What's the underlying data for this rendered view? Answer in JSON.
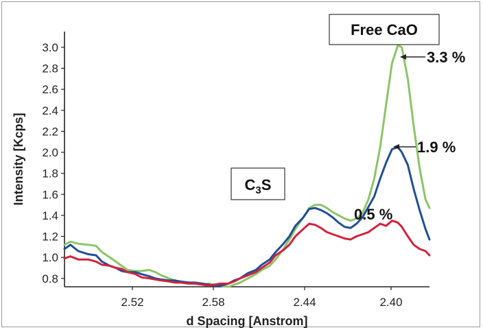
{
  "chart_data": {
    "type": "line",
    "xlabel": "d Spacing [Anstrom]",
    "ylabel": "Intensity [Kcps]",
    "x_tick_labels": [
      "2.52",
      "2.58",
      "2.44",
      "2.40"
    ],
    "y_ticks": [
      0.8,
      1.0,
      1.2,
      1.4,
      1.6,
      1.8,
      2.0,
      2.2,
      2.4,
      2.6,
      2.8,
      3.0
    ],
    "y_tick_labels": [
      "0.8",
      "1.0",
      "1.2",
      "1.4",
      "1.6",
      "1.8",
      "2.0",
      "2.2",
      "2.4",
      "2.6",
      "2.8",
      "3.0"
    ],
    "xlim": [
      2.57,
      2.385
    ],
    "ylim": [
      0.72,
      3.15
    ],
    "x_axis_reversed": true,
    "grid": false,
    "annotations": [
      {
        "id": "free-cao",
        "text": "Free CaO",
        "boxed": true
      },
      {
        "id": "c3s",
        "text_main": "C",
        "text_sub": "3",
        "text_tail": "S",
        "boxed": true
      },
      {
        "id": "pct-green",
        "text": "3.3 %",
        "arrow": true
      },
      {
        "id": "pct-blue",
        "text": "1.9 %",
        "arrow": true
      },
      {
        "id": "pct-red",
        "text": "0.5 %",
        "arrow": false
      }
    ],
    "series": [
      {
        "color": "#8cc467",
        "points": [
          [
            2.57,
            1.12
          ],
          [
            2.567,
            1.15
          ],
          [
            2.563,
            1.13
          ],
          [
            2.558,
            1.12
          ],
          [
            2.554,
            1.11
          ],
          [
            2.551,
            1.05
          ],
          [
            2.547,
            1.0
          ],
          [
            2.544,
            0.96
          ],
          [
            2.541,
            0.92
          ],
          [
            2.538,
            0.88
          ],
          [
            2.534,
            0.87
          ],
          [
            2.531,
            0.87
          ],
          [
            2.527,
            0.88
          ],
          [
            2.524,
            0.86
          ],
          [
            2.521,
            0.83
          ],
          [
            2.517,
            0.8
          ],
          [
            2.514,
            0.78
          ],
          [
            2.511,
            0.76
          ],
          [
            2.507,
            0.76
          ],
          [
            2.504,
            0.75
          ],
          [
            2.5,
            0.74
          ],
          [
            2.497,
            0.75
          ],
          [
            2.494,
            0.74
          ],
          [
            2.491,
            0.73
          ],
          [
            2.487,
            0.72
          ],
          [
            2.484,
            0.74
          ],
          [
            2.481,
            0.76
          ],
          [
            2.477,
            0.8
          ],
          [
            2.473,
            0.84
          ],
          [
            2.47,
            0.88
          ],
          [
            2.466,
            0.92
          ],
          [
            2.463,
            0.98
          ],
          [
            2.459,
            1.08
          ],
          [
            2.456,
            1.17
          ],
          [
            2.453,
            1.27
          ],
          [
            2.449,
            1.38
          ],
          [
            2.446,
            1.47
          ],
          [
            2.443,
            1.5
          ],
          [
            2.44,
            1.5
          ],
          [
            2.437,
            1.47
          ],
          [
            2.434,
            1.43
          ],
          [
            2.431,
            1.4
          ],
          [
            2.428,
            1.37
          ],
          [
            2.425,
            1.35
          ],
          [
            2.422,
            1.37
          ],
          [
            2.419,
            1.42
          ],
          [
            2.416,
            1.55
          ],
          [
            2.413,
            1.75
          ],
          [
            2.41,
            2.05
          ],
          [
            2.407,
            2.45
          ],
          [
            2.404,
            2.85
          ],
          [
            2.401,
            3.02
          ],
          [
            2.399,
            3.0
          ],
          [
            2.396,
            2.7
          ],
          [
            2.393,
            2.25
          ],
          [
            2.39,
            1.85
          ],
          [
            2.387,
            1.55
          ],
          [
            2.385,
            1.47
          ]
        ]
      },
      {
        "color": "#1f4e96",
        "points": [
          [
            2.57,
            1.08
          ],
          [
            2.567,
            1.12
          ],
          [
            2.563,
            1.06
          ],
          [
            2.558,
            1.03
          ],
          [
            2.554,
            1.02
          ],
          [
            2.551,
            0.96
          ],
          [
            2.547,
            0.92
          ],
          [
            2.544,
            0.9
          ],
          [
            2.541,
            0.87
          ],
          [
            2.538,
            0.86
          ],
          [
            2.534,
            0.86
          ],
          [
            2.531,
            0.84
          ],
          [
            2.527,
            0.82
          ],
          [
            2.524,
            0.8
          ],
          [
            2.521,
            0.79
          ],
          [
            2.517,
            0.78
          ],
          [
            2.514,
            0.78
          ],
          [
            2.511,
            0.77
          ],
          [
            2.507,
            0.76
          ],
          [
            2.504,
            0.76
          ],
          [
            2.5,
            0.75
          ],
          [
            2.497,
            0.74
          ],
          [
            2.494,
            0.73
          ],
          [
            2.491,
            0.73
          ],
          [
            2.487,
            0.75
          ],
          [
            2.484,
            0.78
          ],
          [
            2.481,
            0.8
          ],
          [
            2.477,
            0.85
          ],
          [
            2.473,
            0.88
          ],
          [
            2.47,
            0.93
          ],
          [
            2.466,
            0.98
          ],
          [
            2.463,
            1.05
          ],
          [
            2.459,
            1.13
          ],
          [
            2.456,
            1.2
          ],
          [
            2.453,
            1.3
          ],
          [
            2.449,
            1.38
          ],
          [
            2.446,
            1.46
          ],
          [
            2.443,
            1.47
          ],
          [
            2.44,
            1.45
          ],
          [
            2.437,
            1.42
          ],
          [
            2.434,
            1.38
          ],
          [
            2.431,
            1.33
          ],
          [
            2.428,
            1.29
          ],
          [
            2.425,
            1.28
          ],
          [
            2.422,
            1.32
          ],
          [
            2.419,
            1.38
          ],
          [
            2.416,
            1.48
          ],
          [
            2.413,
            1.58
          ],
          [
            2.41,
            1.75
          ],
          [
            2.407,
            1.9
          ],
          [
            2.404,
            2.03
          ],
          [
            2.401,
            2.05
          ],
          [
            2.399,
            2.0
          ],
          [
            2.396,
            1.88
          ],
          [
            2.393,
            1.65
          ],
          [
            2.39,
            1.45
          ],
          [
            2.387,
            1.27
          ],
          [
            2.385,
            1.17
          ]
        ]
      },
      {
        "color": "#d2223c",
        "points": [
          [
            2.57,
            0.99
          ],
          [
            2.567,
            1.01
          ],
          [
            2.563,
            0.98
          ],
          [
            2.558,
            0.98
          ],
          [
            2.554,
            0.96
          ],
          [
            2.551,
            0.93
          ],
          [
            2.547,
            0.92
          ],
          [
            2.544,
            0.9
          ],
          [
            2.541,
            0.89
          ],
          [
            2.538,
            0.86
          ],
          [
            2.534,
            0.84
          ],
          [
            2.531,
            0.81
          ],
          [
            2.527,
            0.8
          ],
          [
            2.524,
            0.79
          ],
          [
            2.521,
            0.78
          ],
          [
            2.517,
            0.77
          ],
          [
            2.514,
            0.76
          ],
          [
            2.511,
            0.76
          ],
          [
            2.507,
            0.75
          ],
          [
            2.504,
            0.75
          ],
          [
            2.5,
            0.74
          ],
          [
            2.497,
            0.73
          ],
          [
            2.494,
            0.74
          ],
          [
            2.491,
            0.75
          ],
          [
            2.487,
            0.75
          ],
          [
            2.484,
            0.77
          ],
          [
            2.481,
            0.8
          ],
          [
            2.477,
            0.83
          ],
          [
            2.473,
            0.86
          ],
          [
            2.47,
            0.9
          ],
          [
            2.466,
            0.95
          ],
          [
            2.463,
            1.02
          ],
          [
            2.459,
            1.07
          ],
          [
            2.456,
            1.12
          ],
          [
            2.453,
            1.2
          ],
          [
            2.449,
            1.27
          ],
          [
            2.446,
            1.32
          ],
          [
            2.443,
            1.31
          ],
          [
            2.44,
            1.28
          ],
          [
            2.437,
            1.24
          ],
          [
            2.434,
            1.22
          ],
          [
            2.431,
            1.2
          ],
          [
            2.428,
            1.18
          ],
          [
            2.425,
            1.17
          ],
          [
            2.422,
            1.2
          ],
          [
            2.419,
            1.22
          ],
          [
            2.416,
            1.24
          ],
          [
            2.413,
            1.28
          ],
          [
            2.41,
            1.32
          ],
          [
            2.407,
            1.3
          ],
          [
            2.404,
            1.35
          ],
          [
            2.401,
            1.33
          ],
          [
            2.399,
            1.29
          ],
          [
            2.396,
            1.2
          ],
          [
            2.393,
            1.12
          ],
          [
            2.39,
            1.08
          ],
          [
            2.387,
            1.06
          ],
          [
            2.385,
            1.02
          ]
        ]
      }
    ]
  }
}
